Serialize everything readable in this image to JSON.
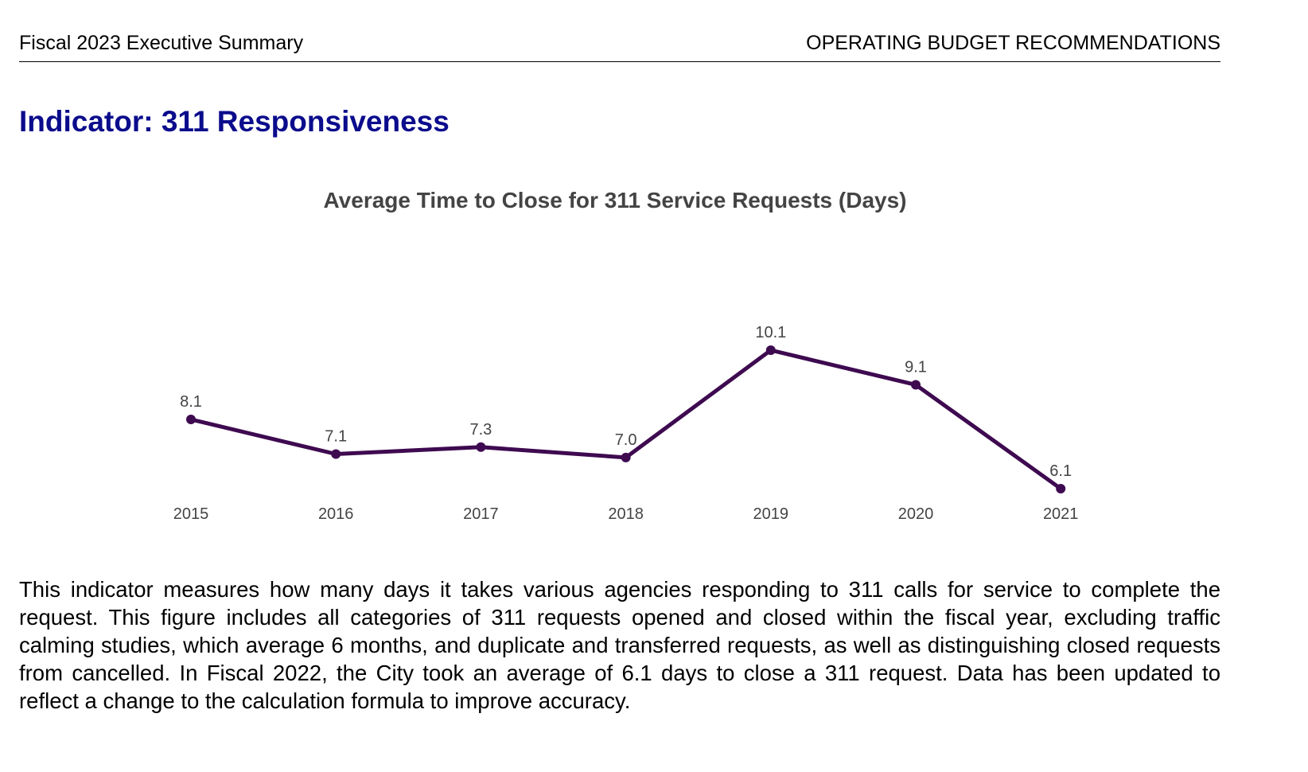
{
  "header": {
    "left": "Fiscal 2023 Executive Summary",
    "right": "OPERATING BUDGET RECOMMENDATIONS"
  },
  "page_title": "Indicator: 311 Responsiveness",
  "chart_data": {
    "type": "line",
    "title": "Average Time to Close for 311 Service Requests (Days)",
    "xlabel": "",
    "ylabel": "",
    "categories": [
      "2015",
      "2016",
      "2017",
      "2018",
      "2019",
      "2020",
      "2021"
    ],
    "values": [
      8.1,
      7.1,
      7.3,
      7.0,
      10.1,
      9.1,
      6.1
    ],
    "data_labels": [
      "8.1",
      "7.1",
      "7.3",
      "7.0",
      "10.1",
      "9.1",
      "6.1"
    ],
    "grid": false,
    "y_axis_visible": false,
    "legend": "none",
    "line_color": "#3e0a50",
    "label_color": "#444444"
  },
  "paragraph": "This indicator measures how many days it takes various agencies responding to 311 calls for service to complete the request.  This figure includes all categories of 311 requests opened and closed within the fiscal year, excluding traffic calming studies, which average 6 months, and duplicate and transferred requests, as well as distinguishing closed requests from cancelled.  In Fiscal 2022, the City took an average of 6.1 days to close a 311 request.  Data has been updated to reflect a change to the calculation formula to improve accuracy."
}
